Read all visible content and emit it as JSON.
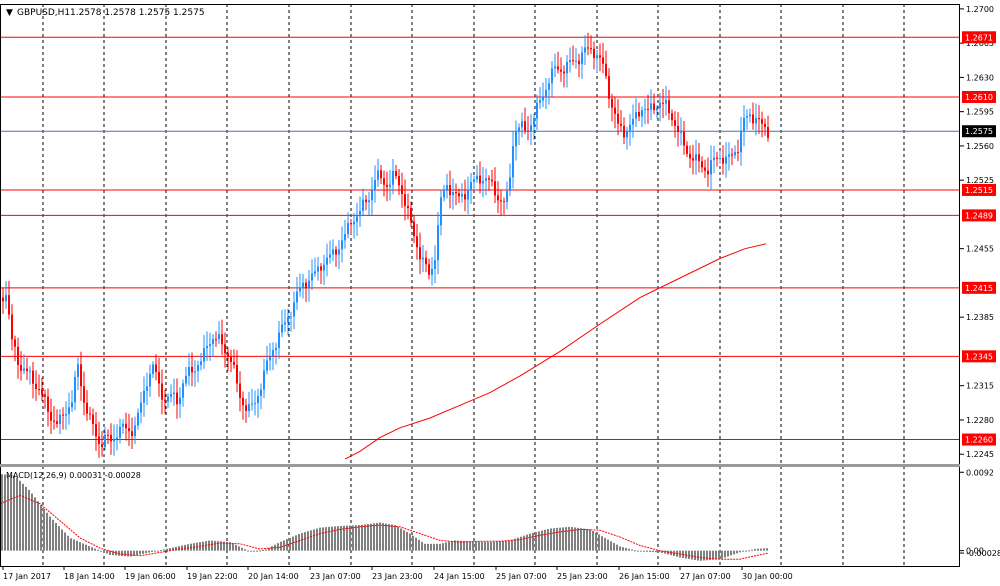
{
  "header": {
    "symbol": "GBPUSD,H1",
    "ohlc": "1.2578 1.2578 1.2575 1.2575"
  },
  "colors": {
    "background": "#ffffff",
    "grid": "#000000",
    "bull": "#1e90ff",
    "bear": "#ff0000",
    "level": "#ff0000",
    "ma": "#ff0000",
    "price_line": "#4a6fb3",
    "histogram": "#808080",
    "signal": "#ff0000"
  },
  "chart_data": [
    {
      "type": "candlestick",
      "title": "GBPUSD,H1",
      "ylim": [
        1.2235,
        1.2705
      ],
      "yticks": [
        "1.2700",
        "1.2665",
        "1.2630",
        "1.2595",
        "1.2560",
        "1.2525",
        "1.2455",
        "1.2385",
        "1.2315",
        "1.2280",
        "1.2245"
      ],
      "xticks": [
        "17 Jan 2017",
        "18 Jan 14:00",
        "19 Jan 06:00",
        "19 Jan 22:00",
        "20 Jan 14:00",
        "23 Jan 07:00",
        "23 Jan 23:00",
        "24 Jan 15:00",
        "25 Jan 07:00",
        "25 Jan 23:00",
        "26 Jan 15:00",
        "27 Jan 07:00",
        "30 Jan 00:00"
      ],
      "levels": [
        "1.2671",
        "1.2610",
        "1.2515",
        "1.2489",
        "1.2415",
        "1.2345",
        "1.2260"
      ],
      "current_price": "1.2575",
      "close_path": [
        [
          0,
          1.2405
        ],
        [
          6,
          1.241
        ],
        [
          12,
          1.236
        ],
        [
          20,
          1.2335
        ],
        [
          30,
          1.2325
        ],
        [
          40,
          1.231
        ],
        [
          50,
          1.2285
        ],
        [
          58,
          1.2275
        ],
        [
          66,
          1.229
        ],
        [
          72,
          1.23
        ],
        [
          78,
          1.2335
        ],
        [
          84,
          1.23
        ],
        [
          90,
          1.228
        ],
        [
          96,
          1.2265
        ],
        [
          100,
          1.2255
        ],
        [
          106,
          1.2262
        ],
        [
          112,
          1.2258
        ],
        [
          118,
          1.227
        ],
        [
          124,
          1.2272
        ],
        [
          130,
          1.2268
        ],
        [
          136,
          1.2275
        ],
        [
          142,
          1.23
        ],
        [
          148,
          1.2325
        ],
        [
          154,
          1.2335
        ],
        [
          160,
          1.231
        ],
        [
          166,
          1.23
        ],
        [
          172,
          1.2305
        ],
        [
          178,
          1.23
        ],
        [
          184,
          1.232
        ],
        [
          190,
          1.233
        ],
        [
          196,
          1.2335
        ],
        [
          202,
          1.234
        ],
        [
          208,
          1.236
        ],
        [
          214,
          1.2365
        ],
        [
          220,
          1.236
        ],
        [
          226,
          1.235
        ],
        [
          232,
          1.234
        ],
        [
          238,
          1.231
        ],
        [
          244,
          1.2295
        ],
        [
          250,
          1.229
        ],
        [
          256,
          1.23
        ],
        [
          262,
          1.232
        ],
        [
          268,
          1.234
        ],
        [
          274,
          1.2355
        ],
        [
          280,
          1.237
        ],
        [
          286,
          1.238
        ],
        [
          292,
          1.2395
        ],
        [
          298,
          1.241
        ],
        [
          304,
          1.242
        ],
        [
          310,
          1.2425
        ],
        [
          316,
          1.243
        ],
        [
          322,
          1.244
        ],
        [
          328,
          1.2445
        ],
        [
          334,
          1.245
        ],
        [
          340,
          1.246
        ],
        [
          346,
          1.247
        ],
        [
          352,
          1.2485
        ],
        [
          358,
          1.249
        ],
        [
          364,
          1.25
        ],
        [
          370,
          1.251
        ],
        [
          376,
          1.253
        ],
        [
          382,
          1.2525
        ],
        [
          388,
          1.252
        ],
        [
          394,
          1.253
        ],
        [
          400,
          1.252
        ],
        [
          406,
          1.25
        ],
        [
          412,
          1.2475
        ],
        [
          418,
          1.2455
        ],
        [
          424,
          1.244
        ],
        [
          430,
          1.2425
        ],
        [
          436,
          1.2455
        ],
        [
          440,
          1.25
        ],
        [
          446,
          1.252
        ],
        [
          452,
          1.2515
        ],
        [
          458,
          1.2505
        ],
        [
          464,
          1.251
        ],
        [
          470,
          1.252
        ],
        [
          476,
          1.2525
        ],
        [
          482,
          1.2528
        ],
        [
          488,
          1.2525
        ],
        [
          494,
          1.2515
        ],
        [
          500,
          1.2505
        ],
        [
          506,
          1.25
        ],
        [
          510,
          1.253
        ],
        [
          514,
          1.2575
        ],
        [
          520,
          1.258
        ],
        [
          526,
          1.2575
        ],
        [
          532,
          1.2585
        ],
        [
          538,
          1.26
        ],
        [
          544,
          1.2615
        ],
        [
          550,
          1.263
        ],
        [
          556,
          1.264
        ],
        [
          562,
          1.2638
        ],
        [
          568,
          1.2642
        ],
        [
          574,
          1.2648
        ],
        [
          580,
          1.265
        ],
        [
          586,
          1.2658
        ],
        [
          592,
          1.266
        ],
        [
          598,
          1.265
        ],
        [
          604,
          1.264
        ],
        [
          608,
          1.262
        ],
        [
          612,
          1.26
        ],
        [
          618,
          1.258
        ],
        [
          624,
          1.2575
        ],
        [
          630,
          1.258
        ],
        [
          636,
          1.259
        ],
        [
          642,
          1.26
        ],
        [
          648,
          1.2595
        ],
        [
          654,
          1.26
        ],
        [
          660,
          1.2605
        ],
        [
          666,
          1.26
        ],
        [
          672,
          1.259
        ],
        [
          678,
          1.2575
        ],
        [
          684,
          1.256
        ],
        [
          690,
          1.255
        ],
        [
          696,
          1.2545
        ],
        [
          702,
          1.254
        ],
        [
          708,
          1.2535
        ],
        [
          714,
          1.2545
        ],
        [
          720,
          1.255
        ],
        [
          726,
          1.2545
        ],
        [
          732,
          1.255
        ],
        [
          738,
          1.256
        ],
        [
          744,
          1.2585
        ],
        [
          750,
          1.2592
        ],
        [
          756,
          1.2588
        ],
        [
          762,
          1.258
        ],
        [
          768,
          1.2575
        ]
      ],
      "ma_path": [
        [
          345,
          1.224
        ],
        [
          360,
          1.2248
        ],
        [
          380,
          1.2262
        ],
        [
          400,
          1.2272
        ],
        [
          430,
          1.2282
        ],
        [
          460,
          1.2295
        ],
        [
          490,
          1.2308
        ],
        [
          520,
          1.2325
        ],
        [
          560,
          1.235
        ],
        [
          600,
          1.2378
        ],
        [
          640,
          1.2405
        ],
        [
          680,
          1.2425
        ],
        [
          720,
          1.2445
        ],
        [
          745,
          1.2455
        ],
        [
          766,
          1.246
        ]
      ]
    },
    {
      "type": "histogram",
      "title": "MACD(12,26,9) 0.00031 -0.00028",
      "ylim": [
        -0.0018,
        0.0097
      ],
      "yticks": [
        "0.0092",
        "0.00",
        "-0.00028"
      ],
      "histogram_path": [
        [
          0,
          0.009
        ],
        [
          15,
          0.0088
        ],
        [
          30,
          0.007
        ],
        [
          50,
          0.004
        ],
        [
          70,
          0.0015
        ],
        [
          90,
          0.0005
        ],
        [
          110,
          -0.0005
        ],
        [
          130,
          -0.0007
        ],
        [
          150,
          -0.0002
        ],
        [
          170,
          0.0003
        ],
        [
          190,
          0.0008
        ],
        [
          210,
          0.0012
        ],
        [
          230,
          0.001
        ],
        [
          250,
          -0.0001
        ],
        [
          265,
          0.0001
        ],
        [
          280,
          0.001
        ],
        [
          300,
          0.002
        ],
        [
          320,
          0.0027
        ],
        [
          340,
          0.0029
        ],
        [
          360,
          0.003
        ],
        [
          380,
          0.0033
        ],
        [
          395,
          0.003
        ],
        [
          410,
          0.002
        ],
        [
          425,
          0.0008
        ],
        [
          440,
          0.0008
        ],
        [
          455,
          0.0012
        ],
        [
          470,
          0.0011
        ],
        [
          490,
          0.001
        ],
        [
          510,
          0.0012
        ],
        [
          530,
          0.002
        ],
        [
          550,
          0.0026
        ],
        [
          570,
          0.0028
        ],
        [
          590,
          0.0025
        ],
        [
          605,
          0.0015
        ],
        [
          620,
          0.0005
        ],
        [
          640,
          -0.0001
        ],
        [
          660,
          -0.0002
        ],
        [
          680,
          -0.0008
        ],
        [
          700,
          -0.0012
        ],
        [
          720,
          -0.001
        ],
        [
          740,
          -0.0002
        ],
        [
          755,
          0.0002
        ],
        [
          768,
          0.0003
        ]
      ],
      "signal_path": [
        [
          0,
          0.0055
        ],
        [
          20,
          0.0065
        ],
        [
          40,
          0.0055
        ],
        [
          60,
          0.0035
        ],
        [
          80,
          0.0015
        ],
        [
          100,
          0.0003
        ],
        [
          120,
          -0.0004
        ],
        [
          140,
          -0.0006
        ],
        [
          160,
          -0.0002
        ],
        [
          180,
          0.0002
        ],
        [
          200,
          0.0005
        ],
        [
          220,
          0.0009
        ],
        [
          240,
          0.0008
        ],
        [
          260,
          0.0002
        ],
        [
          280,
          0.0004
        ],
        [
          300,
          0.0012
        ],
        [
          320,
          0.002
        ],
        [
          340,
          0.0025
        ],
        [
          360,
          0.0028
        ],
        [
          380,
          0.003
        ],
        [
          400,
          0.0028
        ],
        [
          420,
          0.002
        ],
        [
          440,
          0.0012
        ],
        [
          460,
          0.001
        ],
        [
          480,
          0.0011
        ],
        [
          500,
          0.0011
        ],
        [
          520,
          0.0013
        ],
        [
          540,
          0.0018
        ],
        [
          560,
          0.0022
        ],
        [
          580,
          0.0025
        ],
        [
          600,
          0.0024
        ],
        [
          620,
          0.0016
        ],
        [
          640,
          0.0006
        ],
        [
          660,
          0.0
        ],
        [
          680,
          -0.0004
        ],
        [
          700,
          -0.0008
        ],
        [
          720,
          -0.001
        ],
        [
          740,
          -0.001
        ],
        [
          755,
          -0.0006
        ],
        [
          768,
          -0.0003
        ]
      ]
    }
  ]
}
